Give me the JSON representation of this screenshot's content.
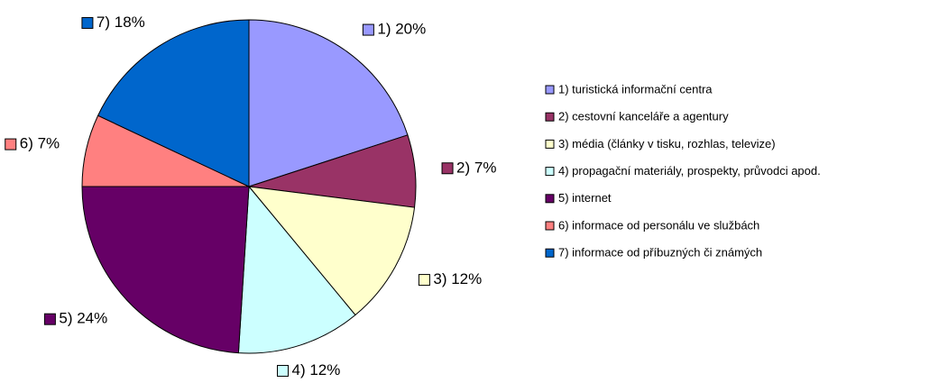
{
  "chart_data": {
    "type": "pie",
    "categories": [
      "1) turistická informační centra",
      "2) cestovní kanceláře a agentury",
      "3) média (články v tisku, rozhlas, televize)",
      "4) propagační materiály, prospekty, průvodci apod.",
      "5) internet",
      "6) informace od personálu ve službách",
      "7) informace od příbuzných či známých"
    ],
    "values": [
      20,
      7,
      12,
      12,
      24,
      7,
      18
    ],
    "value_labels": [
      "1) 20%",
      "2) 7%",
      "3) 12%",
      "4) 12%",
      "5) 24%",
      "6) 7%",
      "7) 18%"
    ],
    "colors": [
      "#9999ff",
      "#993366",
      "#ffffcc",
      "#ccffff",
      "#660066",
      "#ff8080",
      "#0066cc"
    ],
    "legend": "right"
  }
}
